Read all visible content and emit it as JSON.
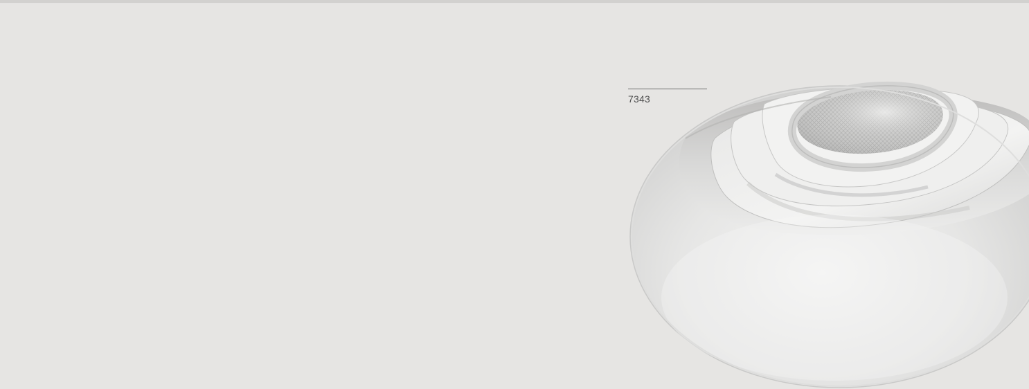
{
  "page": {
    "background_color": "#e6e5e3"
  },
  "caption": {
    "code": "7343"
  },
  "image": {
    "subject": "recessed-downlight-icon"
  }
}
